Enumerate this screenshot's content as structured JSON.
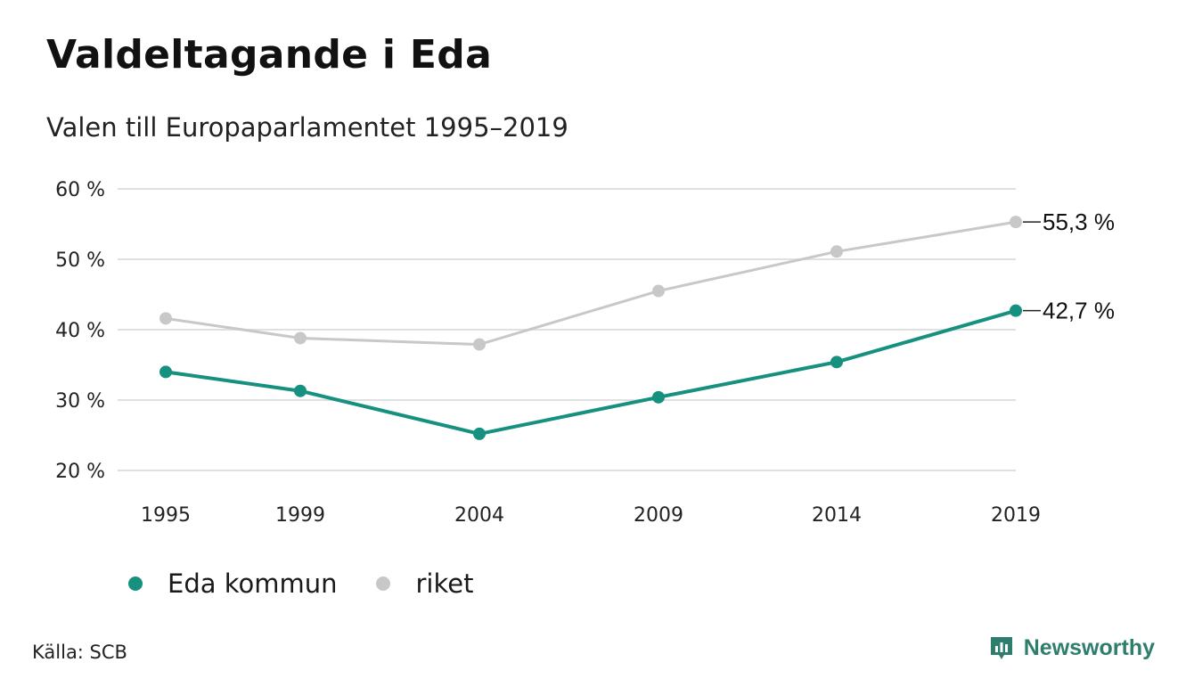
{
  "header": {
    "title": "Valdeltagande i Eda",
    "subtitle": "Valen till Europaparlamentet 1995–2019"
  },
  "footer": {
    "source": "Källa: SCB",
    "brand": "Newsworthy"
  },
  "colors": {
    "eda": "#16917f",
    "riket": "#c8c8c8",
    "grid": "#e0e0e0",
    "brand": "#2e7d6d"
  },
  "chart_data": {
    "type": "line",
    "x": [
      1995,
      1999,
      2004,
      2009,
      2014,
      2019
    ],
    "x_tick_labels": [
      "1995",
      "1999",
      "2004",
      "2009",
      "2014",
      "2019"
    ],
    "y_ticks": [
      20,
      30,
      40,
      50,
      60
    ],
    "y_tick_labels": [
      "20 %",
      "30 %",
      "40 %",
      "50 %",
      "60 %"
    ],
    "ylim": [
      20,
      60
    ],
    "grid": true,
    "legend_position": "bottom-left",
    "series": [
      {
        "name": "Eda kommun",
        "key": "eda",
        "values": [
          34.0,
          31.3,
          25.2,
          30.4,
          35.4,
          42.7
        ],
        "end_label": "42,7 %"
      },
      {
        "name": "riket",
        "key": "riket",
        "values": [
          41.6,
          38.8,
          37.9,
          45.5,
          51.1,
          55.3
        ],
        "end_label": "55,3 %"
      }
    ]
  }
}
